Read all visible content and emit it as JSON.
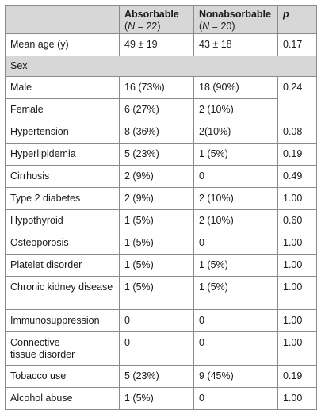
{
  "table": {
    "header": {
      "col1": "",
      "absorbable": {
        "label": "Absorbable",
        "n_prefix": "(",
        "n_var": "N",
        "n_suffix": " = 22)"
      },
      "nonabsorbable": {
        "label": "Nonabsorbable",
        "n_prefix": "(",
        "n_var": "N",
        "n_suffix": " = 20)"
      },
      "p": "p"
    },
    "rows": {
      "mean_age": {
        "label": "Mean age (y)",
        "abs": "49 ± 19",
        "nonabs": "43 ± 18",
        "p": "0.17"
      },
      "sex": {
        "label": "Sex"
      },
      "male": {
        "label": "Male",
        "abs": "16 (73%)",
        "nonabs": "18 (90%)",
        "p": "0.24"
      },
      "female": {
        "label": "Female",
        "abs": "6 (27%)",
        "nonabs": "2 (10%)"
      },
      "hypertension": {
        "label": "Hypertension",
        "abs": "8 (36%)",
        "nonabs": "2(10%)",
        "p": "0.08"
      },
      "hyperlipidemia": {
        "label": "Hyperlipidemia",
        "abs": "5 (23%)",
        "nonabs": "1 (5%)",
        "p": "0.19"
      },
      "cirrhosis": {
        "label": "Cirrhosis",
        "abs": "2 (9%)",
        "nonabs": "0",
        "p": "0.49"
      },
      "t2d": {
        "label": "Type 2 diabetes",
        "abs": "2 (9%)",
        "nonabs": "2 (10%)",
        "p": "1.00"
      },
      "hypothyroid": {
        "label": "Hypothyroid",
        "abs": "1 (5%)",
        "nonabs": "2 (10%)",
        "p": "0.60"
      },
      "osteoporosis": {
        "label": "Osteoporosis",
        "abs": "1 (5%)",
        "nonabs": "0",
        "p": "1.00"
      },
      "platelet": {
        "label": "Platelet disorder",
        "abs": "1 (5%)",
        "nonabs": "1 (5%)",
        "p": "1.00"
      },
      "ckd": {
        "label": "Chronic kidney disease",
        "abs": "1 (5%)",
        "nonabs": "1 (5%)",
        "p": "1.00"
      },
      "immuno": {
        "label": "Immunosuppression",
        "abs": "0",
        "nonabs": "0",
        "p": "1.00"
      },
      "connective": {
        "label": "Connective tissue disorder",
        "abs": "0",
        "nonabs": "0",
        "p": "1.00"
      },
      "tobacco": {
        "label": "Tobacco use",
        "abs": "5 (23%)",
        "nonabs": "9 (45%)",
        "p": "0.19"
      },
      "alcohol": {
        "label": "Alcohol abuse",
        "abs": "1 (5%)",
        "nonabs": "0",
        "p": "1.00"
      }
    }
  }
}
